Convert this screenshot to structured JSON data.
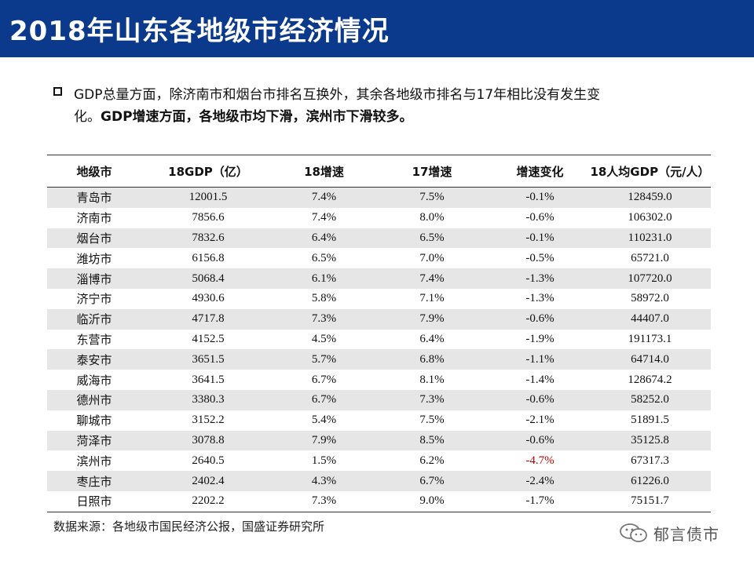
{
  "header": {
    "title": "2018年山东各地级市经济情况"
  },
  "summary": {
    "line1": "GDP总量方面，除济南市和烟台市排名互换外，其余各地级市排名与17年相比没有发生变",
    "line2_prefix": "化。",
    "line2_bold": "GDP增速方面，各地级市均下滑，滨州市下滑较多。"
  },
  "table": {
    "headers": [
      "地级市",
      "18GDP（亿）",
      "18增速",
      "17增速",
      "增速变化",
      "18人均GDP（元/人）"
    ],
    "rows": [
      [
        "青岛市",
        "12001.5",
        "7.4%",
        "7.5%",
        "-0.1%",
        "128459.0"
      ],
      [
        "济南市",
        "7856.6",
        "7.4%",
        "8.0%",
        "-0.6%",
        "106302.0"
      ],
      [
        "烟台市",
        "7832.6",
        "6.4%",
        "6.5%",
        "-0.1%",
        "110231.0"
      ],
      [
        "潍坊市",
        "6156.8",
        "6.5%",
        "7.0%",
        "-0.5%",
        "65721.0"
      ],
      [
        "淄博市",
        "5068.4",
        "6.1%",
        "7.4%",
        "-1.3%",
        "107720.0"
      ],
      [
        "济宁市",
        "4930.6",
        "5.8%",
        "7.1%",
        "-1.3%",
        "58972.0"
      ],
      [
        "临沂市",
        "4717.8",
        "7.3%",
        "7.9%",
        "-0.6%",
        "44407.0"
      ],
      [
        "东营市",
        "4152.5",
        "4.5%",
        "6.4%",
        "-1.9%",
        "191173.1"
      ],
      [
        "泰安市",
        "3651.5",
        "5.7%",
        "6.8%",
        "-1.1%",
        "64714.0"
      ],
      [
        "威海市",
        "3641.5",
        "6.7%",
        "8.1%",
        "-1.4%",
        "128674.2"
      ],
      [
        "德州市",
        "3380.3",
        "6.7%",
        "7.3%",
        "-0.6%",
        "58252.0"
      ],
      [
        "聊城市",
        "3152.2",
        "5.4%",
        "7.5%",
        "-2.1%",
        "51891.5"
      ],
      [
        "菏泽市",
        "3078.8",
        "7.9%",
        "8.5%",
        "-0.6%",
        "35125.8"
      ],
      [
        "滨州市",
        "2640.5",
        "1.5%",
        "6.2%",
        "-4.7%",
        "67317.3"
      ],
      [
        "枣庄市",
        "2402.4",
        "4.3%",
        "6.7%",
        "-2.4%",
        "61226.0"
      ],
      [
        "日照市",
        "2202.2",
        "7.3%",
        "9.0%",
        "-1.7%",
        "75151.7"
      ]
    ],
    "highlight_city": "滨州市",
    "highlight_color": "#c00000"
  },
  "footer": {
    "source": "数据来源：各地级市国民经济公报，国盛证券研究所",
    "watermark": "郁言债市"
  },
  "colors": {
    "title_bar": "#0b3a8c",
    "row_stripe": "#e6e6e6"
  }
}
